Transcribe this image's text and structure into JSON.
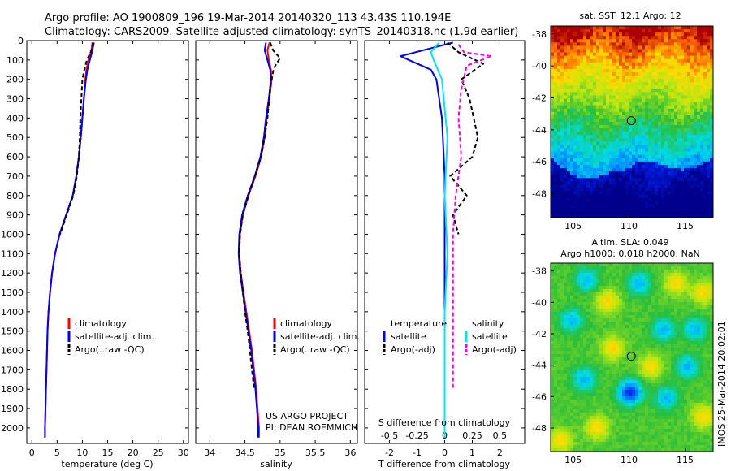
{
  "header": {
    "line1": "Argo profile: AO 1900809_196 19-Mar-2014 20140320_113 43.43S 110.194E",
    "line2": "Climatology: CARS2009. Satellite-adjusted climatology: synTS_20140318.nc (1.9d earlier)"
  },
  "colors": {
    "climatology": "#ff0000",
    "satellite": "#0000ee",
    "argo": "#000000",
    "sat_salinity": "#00e5ee",
    "argo_salinity": "#ee00ee"
  },
  "chart_data": [
    {
      "id": "temperature",
      "type": "line",
      "xlabel": "temperature (deg C)",
      "ylabel": "",
      "xlim": [
        -1,
        31
      ],
      "ylim": [
        2080,
        0
      ],
      "xticks": [
        0,
        5,
        10,
        15,
        20,
        25,
        30
      ],
      "yticks": [
        0,
        100,
        200,
        300,
        400,
        500,
        600,
        700,
        800,
        900,
        1000,
        1100,
        1200,
        1300,
        1400,
        1500,
        1600,
        1700,
        1800,
        1900,
        2000
      ],
      "legend": [
        {
          "label": "climatology",
          "color": "#ff0000"
        },
        {
          "label": "satellite-adj. clim.",
          "color": "#0000ee"
        },
        {
          "label": "Argo(..raw -QC)",
          "color": "#000000"
        }
      ],
      "series": [
        {
          "name": "climatology",
          "color": "#ff0000",
          "dash": false,
          "points": [
            [
              12.0,
              10
            ],
            [
              11.8,
              50
            ],
            [
              11.2,
              100
            ],
            [
              10.8,
              150
            ],
            [
              10.6,
              200
            ],
            [
              10.3,
              300
            ],
            [
              10.0,
              400
            ],
            [
              9.7,
              500
            ],
            [
              9.3,
              600
            ],
            [
              8.8,
              700
            ],
            [
              8.1,
              800
            ],
            [
              6.8,
              900
            ],
            [
              5.5,
              1000
            ],
            [
              4.6,
              1100
            ],
            [
              4.0,
              1200
            ],
            [
              3.6,
              1300
            ],
            [
              3.3,
              1400
            ],
            [
              3.1,
              1500
            ],
            [
              3.0,
              1600
            ],
            [
              2.9,
              1700
            ],
            [
              2.8,
              1800
            ],
            [
              2.7,
              1900
            ],
            [
              2.6,
              2000
            ],
            [
              2.6,
              2050
            ]
          ]
        },
        {
          "name": "satellite-adj. clim.",
          "color": "#0000ee",
          "dash": false,
          "points": [
            [
              12.3,
              10
            ],
            [
              12.0,
              50
            ],
            [
              11.5,
              100
            ],
            [
              11.0,
              150
            ],
            [
              10.7,
              200
            ],
            [
              10.3,
              300
            ],
            [
              10.0,
              400
            ],
            [
              9.7,
              500
            ],
            [
              9.3,
              600
            ],
            [
              8.8,
              700
            ],
            [
              8.1,
              800
            ],
            [
              6.8,
              900
            ],
            [
              5.5,
              1000
            ],
            [
              4.6,
              1100
            ],
            [
              4.0,
              1200
            ],
            [
              3.6,
              1300
            ],
            [
              3.3,
              1400
            ],
            [
              3.1,
              1500
            ],
            [
              3.0,
              1600
            ],
            [
              2.9,
              1700
            ],
            [
              2.8,
              1800
            ],
            [
              2.7,
              1900
            ],
            [
              2.6,
              2000
            ],
            [
              2.6,
              2050
            ]
          ]
        },
        {
          "name": "Argo(..raw -QC)",
          "color": "#000000",
          "dash": true,
          "points": [
            [
              12.1,
              10
            ],
            [
              11.8,
              50
            ],
            [
              10.9,
              100
            ],
            [
              10.4,
              150
            ],
            [
              10.0,
              200
            ],
            [
              9.8,
              300
            ],
            [
              9.6,
              400
            ],
            [
              9.5,
              500
            ],
            [
              9.3,
              600
            ],
            [
              8.9,
              700
            ],
            [
              8.2,
              800
            ],
            [
              6.9,
              900
            ],
            [
              5.6,
              1000
            ]
          ]
        }
      ]
    },
    {
      "id": "salinity",
      "type": "line",
      "xlabel": "salinity",
      "ylabel": "",
      "xlim": [
        33.8,
        36.1
      ],
      "ylim": [
        2080,
        0
      ],
      "xticks": [
        34,
        34.5,
        35,
        35.5,
        36
      ],
      "xticklabels": [
        "34",
        "34.5",
        "35",
        "35.5",
        "36"
      ],
      "legend": [
        {
          "label": "climatology",
          "color": "#ff0000"
        },
        {
          "label": "satellite-adj. clim.",
          "color": "#0000ee"
        },
        {
          "label": "Argo(..raw -QC)",
          "color": "#000000"
        }
      ],
      "annotations": [
        "US ARGO PROJECT",
        "PI: DEAN ROEMMICH"
      ],
      "series": [
        {
          "name": "climatology",
          "color": "#ff0000",
          "dash": false,
          "points": [
            [
              34.85,
              10
            ],
            [
              34.82,
              50
            ],
            [
              34.84,
              100
            ],
            [
              34.87,
              150
            ],
            [
              34.88,
              200
            ],
            [
              34.85,
              300
            ],
            [
              34.81,
              400
            ],
            [
              34.78,
              500
            ],
            [
              34.73,
              600
            ],
            [
              34.65,
              700
            ],
            [
              34.55,
              800
            ],
            [
              34.47,
              900
            ],
            [
              34.43,
              1000
            ],
            [
              34.42,
              1100
            ],
            [
              34.44,
              1200
            ],
            [
              34.48,
              1300
            ],
            [
              34.52,
              1400
            ],
            [
              34.56,
              1500
            ],
            [
              34.6,
              1600
            ],
            [
              34.63,
              1700
            ],
            [
              34.66,
              1800
            ],
            [
              34.68,
              1900
            ],
            [
              34.7,
              2000
            ],
            [
              34.7,
              2050
            ]
          ]
        },
        {
          "name": "satellite-adj. clim.",
          "color": "#0000ee",
          "dash": false,
          "points": [
            [
              34.8,
              10
            ],
            [
              34.78,
              50
            ],
            [
              34.82,
              100
            ],
            [
              34.86,
              150
            ],
            [
              34.87,
              200
            ],
            [
              34.84,
              300
            ],
            [
              34.8,
              400
            ],
            [
              34.77,
              500
            ],
            [
              34.72,
              600
            ],
            [
              34.64,
              700
            ],
            [
              34.54,
              800
            ],
            [
              34.46,
              900
            ],
            [
              34.42,
              1000
            ],
            [
              34.41,
              1100
            ],
            [
              34.43,
              1200
            ],
            [
              34.47,
              1300
            ],
            [
              34.51,
              1400
            ],
            [
              34.55,
              1500
            ],
            [
              34.59,
              1600
            ],
            [
              34.62,
              1700
            ],
            [
              34.65,
              1800
            ],
            [
              34.67,
              1900
            ],
            [
              34.69,
              2000
            ],
            [
              34.69,
              2050
            ]
          ]
        },
        {
          "name": "Argo(..raw -QC)",
          "color": "#000000",
          "dash": true,
          "points": [
            [
              34.86,
              10
            ],
            [
              34.9,
              50
            ],
            [
              35.0,
              90
            ],
            [
              34.93,
              130
            ],
            [
              34.9,
              160
            ],
            [
              34.86,
              250
            ],
            [
              34.82,
              400
            ],
            [
              34.78,
              500
            ],
            [
              34.73,
              600
            ],
            [
              34.64,
              700
            ],
            [
              34.55,
              800
            ],
            [
              34.47,
              900
            ],
            [
              34.43,
              1000
            ],
            [
              34.42,
              1100
            ],
            [
              34.44,
              1200
            ],
            [
              34.47,
              1300
            ],
            [
              34.5,
              1400
            ],
            [
              34.54,
              1500
            ],
            [
              34.57,
              1600
            ],
            [
              34.6,
              1700
            ],
            [
              34.63,
              1800
            ]
          ]
        }
      ]
    },
    {
      "id": "difference",
      "type": "line",
      "xlabel": "T difference from climatology",
      "xlabel_top": "S difference from climatology",
      "xlim": [
        -2.9,
        2.9
      ],
      "ylim": [
        2080,
        0
      ],
      "xticks": [
        -2,
        -1,
        0,
        1,
        2
      ],
      "xticks_top": [
        -0.5,
        -0.25,
        0,
        0.25,
        0.5
      ],
      "legend_temperature": {
        "title": "temperature",
        "items": [
          {
            "label": "satellite",
            "color": "#0000ee"
          },
          {
            "label": "Argo(-adj)",
            "color": "#000000"
          }
        ]
      },
      "legend_salinity": {
        "title": "salinity",
        "items": [
          {
            "label": "satellite",
            "color": "#00e5ee"
          },
          {
            "label": "Argo(-adj)",
            "color": "#ee00ee"
          }
        ]
      },
      "series": [
        {
          "name": "T satellite",
          "color": "#0000ee",
          "dash": false,
          "points": [
            [
              0.3,
              10
            ],
            [
              -1.6,
              80
            ],
            [
              -1.3,
              100
            ],
            [
              -0.5,
              150
            ],
            [
              -0.3,
              200
            ],
            [
              -0.1,
              400
            ],
            [
              0.0,
              700
            ],
            [
              0.0,
              2050
            ]
          ]
        },
        {
          "name": "T Argo(-adj)",
          "color": "#000000",
          "dash": true,
          "points": [
            [
              0.1,
              10
            ],
            [
              0.5,
              60
            ],
            [
              1.4,
              120
            ],
            [
              0.6,
              200
            ],
            [
              0.9,
              300
            ],
            [
              1.2,
              500
            ],
            [
              1.0,
              600
            ],
            [
              0.2,
              700
            ],
            [
              0.8,
              800
            ],
            [
              0.3,
              900
            ],
            [
              0.5,
              1000
            ]
          ]
        },
        {
          "name": "S satellite",
          "color": "#00e5ee",
          "dash": false,
          "points": [
            [
              -0.2,
              10
            ],
            [
              -0.5,
              60
            ],
            [
              -0.4,
              100
            ],
            [
              -0.1,
              200
            ],
            [
              0.1,
              500
            ],
            [
              0.0,
              800
            ],
            [
              0.1,
              1100
            ],
            [
              0.0,
              1400
            ],
            [
              0.0,
              2050
            ]
          ]
        },
        {
          "name": "S Argo(-adj)",
          "color": "#ee00ee",
          "dash": true,
          "points": [
            [
              0.5,
              20
            ],
            [
              0.7,
              60
            ],
            [
              1.7,
              80
            ],
            [
              0.8,
              130
            ],
            [
              0.6,
              250
            ],
            [
              0.5,
              400
            ],
            [
              0.6,
              600
            ],
            [
              0.4,
              800
            ],
            [
              0.3,
              1000
            ],
            [
              0.3,
              1400
            ],
            [
              0.3,
              1800
            ]
          ]
        }
      ]
    },
    {
      "id": "sst_map",
      "type": "heatmap",
      "title": "sat. SST: 12.1  Argo: 12",
      "xlim": [
        103,
        117.5
      ],
      "ylim": [
        -49.5,
        -37.5
      ],
      "xticks": [
        105,
        110,
        115
      ],
      "yticks": [
        -38,
        -40,
        -42,
        -44,
        -46,
        -48
      ],
      "marker": {
        "lon": 110.194,
        "lat": -43.43
      }
    },
    {
      "id": "sla_map",
      "type": "heatmap",
      "title": "Altim. SLA: 0.049",
      "subtitle": "Argo h1000: 0.018 h2000: NaN",
      "xlim": [
        103,
        117.5
      ],
      "ylim": [
        -49.5,
        -37.5
      ],
      "xticks": [
        105,
        110,
        115
      ],
      "yticks": [
        -38,
        -40,
        -42,
        -44,
        -46,
        -48
      ],
      "marker": {
        "lon": 110.194,
        "lat": -43.43
      }
    }
  ],
  "footer_vertical": "IMOS 25-Mar-2014 20:02:01"
}
